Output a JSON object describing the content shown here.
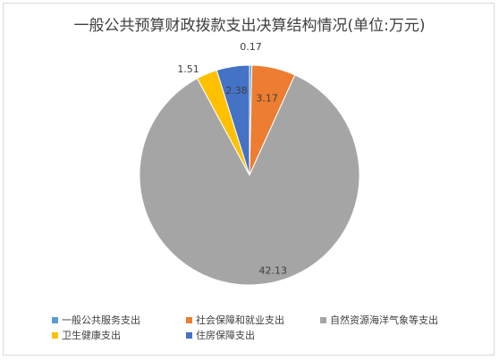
{
  "chart_data": {
    "type": "pie",
    "title": "一般公共预算财政拨款支出决算结构情况(单位:万元)",
    "slices": [
      {
        "name": "一般公共服务支出",
        "value": 0.17,
        "label": "0.17",
        "color": "#5b9bd5"
      },
      {
        "name": "社会保障和就业支出",
        "value": 3.17,
        "label": "3.17",
        "color": "#ed7d31"
      },
      {
        "name": "自然资源海洋气象等支出",
        "value": 42.13,
        "label": "42.13",
        "color": "#a5a5a5"
      },
      {
        "name": "卫生健康支出",
        "value": 1.51,
        "label": "1.51",
        "color": "#ffc000"
      },
      {
        "name": "住房保障支出",
        "value": 2.38,
        "label": "2.38",
        "color": "#4472c4"
      }
    ],
    "legend_position": "bottom"
  }
}
